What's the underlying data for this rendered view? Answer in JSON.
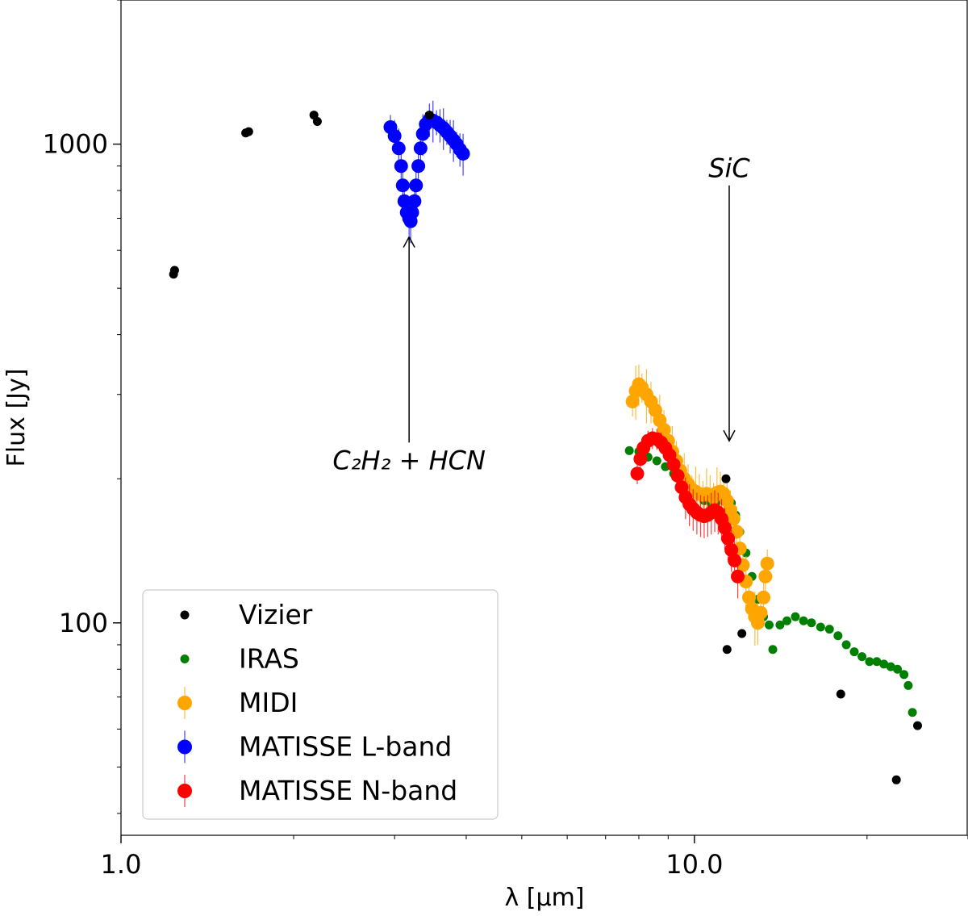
{
  "chart_data": {
    "type": "scatter",
    "xscale": "log",
    "yscale": "log",
    "xlabel": "λ [µm]",
    "ylabel": "Flux [Jy]",
    "xlim": [
      1.0,
      30.0
    ],
    "ylim": [
      36,
      2000
    ],
    "xticks": [
      {
        "value": 1.0,
        "label": "1.0"
      },
      {
        "value": 10.0,
        "label": "10.0"
      }
    ],
    "yticks": [
      {
        "value": 100,
        "label": "100"
      },
      {
        "value": 1000,
        "label": "1000"
      }
    ],
    "legend_position": "lower-left",
    "series": [
      {
        "name": "Vizier",
        "color": "#000000",
        "marker_size": "small",
        "errorbars": false,
        "points": [
          [
            1.235,
            535
          ],
          [
            1.24,
            545
          ],
          [
            1.65,
            1055
          ],
          [
            1.67,
            1062
          ],
          [
            2.17,
            1150
          ],
          [
            2.2,
            1115
          ],
          [
            3.45,
            1150
          ],
          [
            11.35,
            200
          ],
          [
            11.4,
            88
          ],
          [
            12.1,
            95
          ],
          [
            18.0,
            71
          ],
          [
            22.5,
            47
          ],
          [
            24.5,
            61
          ]
        ]
      },
      {
        "name": "IRAS",
        "color": "#008000",
        "marker_size": "small",
        "errorbars": false,
        "points": [
          [
            7.7,
            229
          ],
          [
            8.0,
            228
          ],
          [
            8.3,
            222
          ],
          [
            8.6,
            218
          ],
          [
            8.9,
            212
          ],
          [
            9.2,
            205
          ],
          [
            9.5,
            196
          ],
          [
            9.8,
            190
          ],
          [
            10.1,
            185
          ],
          [
            10.4,
            180
          ],
          [
            10.7,
            178
          ],
          [
            11.0,
            180
          ],
          [
            11.3,
            183
          ],
          [
            11.6,
            178
          ],
          [
            11.8,
            168
          ],
          [
            12.0,
            155
          ],
          [
            12.3,
            140
          ],
          [
            12.6,
            125
          ],
          [
            12.9,
            112
          ],
          [
            13.2,
            103
          ],
          [
            13.5,
            99
          ],
          [
            13.7,
            88
          ],
          [
            14.1,
            99
          ],
          [
            14.5,
            101
          ],
          [
            15.0,
            103
          ],
          [
            15.5,
            101
          ],
          [
            16.0,
            100
          ],
          [
            16.6,
            98
          ],
          [
            17.2,
            97
          ],
          [
            17.8,
            94
          ],
          [
            18.4,
            90
          ],
          [
            19.0,
            87
          ],
          [
            19.6,
            85
          ],
          [
            20.2,
            83
          ],
          [
            20.8,
            83
          ],
          [
            21.4,
            82
          ],
          [
            22.0,
            81
          ],
          [
            22.6,
            80
          ],
          [
            23.2,
            78
          ],
          [
            23.6,
            74
          ],
          [
            24.0,
            65
          ]
        ]
      },
      {
        "name": "MIDI",
        "color": "#FFA500",
        "marker_size": "large",
        "errorbars": true,
        "points": [
          [
            7.8,
            290
          ],
          [
            7.9,
            305
          ],
          [
            8.0,
            315
          ],
          [
            8.1,
            310
          ],
          [
            8.25,
            300
          ],
          [
            8.4,
            290
          ],
          [
            8.55,
            278
          ],
          [
            8.7,
            265
          ],
          [
            8.85,
            253
          ],
          [
            9.0,
            240
          ],
          [
            9.15,
            228
          ],
          [
            9.3,
            218
          ],
          [
            9.45,
            208
          ],
          [
            9.6,
            200
          ],
          [
            9.75,
            195
          ],
          [
            9.9,
            190
          ],
          [
            10.05,
            188
          ],
          [
            10.2,
            186
          ],
          [
            10.35,
            185
          ],
          [
            10.5,
            186
          ],
          [
            10.65,
            185
          ],
          [
            10.8,
            183
          ],
          [
            10.95,
            187
          ],
          [
            11.1,
            188
          ],
          [
            11.25,
            186
          ],
          [
            11.4,
            180
          ],
          [
            11.55,
            172
          ],
          [
            11.7,
            165
          ],
          [
            11.85,
            155
          ],
          [
            12.0,
            143
          ],
          [
            12.15,
            132
          ],
          [
            12.3,
            122
          ],
          [
            12.45,
            113
          ],
          [
            12.6,
            107
          ],
          [
            12.75,
            103
          ],
          [
            12.9,
            100
          ],
          [
            13.05,
            105
          ],
          [
            13.2,
            113
          ],
          [
            13.3,
            125
          ],
          [
            13.4,
            133
          ]
        ]
      },
      {
        "name": "MATISSE L-band",
        "color": "#0000FF",
        "marker_size": "large",
        "errorbars": true,
        "points": [
          [
            2.95,
            1085
          ],
          [
            3.0,
            1040
          ],
          [
            3.05,
            980
          ],
          [
            3.08,
            900
          ],
          [
            3.1,
            820
          ],
          [
            3.12,
            760
          ],
          [
            3.15,
            720
          ],
          [
            3.18,
            700
          ],
          [
            3.2,
            690
          ],
          [
            3.22,
            720
          ],
          [
            3.25,
            760
          ],
          [
            3.27,
            820
          ],
          [
            3.3,
            900
          ],
          [
            3.33,
            980
          ],
          [
            3.36,
            1050
          ],
          [
            3.4,
            1100
          ],
          [
            3.45,
            1125
          ],
          [
            3.5,
            1120
          ],
          [
            3.55,
            1110
          ],
          [
            3.6,
            1095
          ],
          [
            3.65,
            1080
          ],
          [
            3.7,
            1060
          ],
          [
            3.75,
            1040
          ],
          [
            3.8,
            1020
          ],
          [
            3.85,
            1000
          ],
          [
            3.9,
            975
          ],
          [
            3.95,
            955
          ]
        ]
      },
      {
        "name": "MATISSE N-band",
        "color": "#FF0000",
        "marker_size": "large",
        "errorbars": true,
        "points": [
          [
            7.95,
            205
          ],
          [
            8.05,
            220
          ],
          [
            8.15,
            232
          ],
          [
            8.3,
            240
          ],
          [
            8.45,
            243
          ],
          [
            8.6,
            242
          ],
          [
            8.75,
            238
          ],
          [
            8.9,
            232
          ],
          [
            9.05,
            224
          ],
          [
            9.2,
            214
          ],
          [
            9.35,
            203
          ],
          [
            9.5,
            192
          ],
          [
            9.65,
            183
          ],
          [
            9.8,
            177
          ],
          [
            9.95,
            173
          ],
          [
            10.1,
            170
          ],
          [
            10.25,
            168
          ],
          [
            10.4,
            167
          ],
          [
            10.55,
            168
          ],
          [
            10.7,
            170
          ],
          [
            10.85,
            172
          ],
          [
            11.0,
            170
          ],
          [
            11.15,
            165
          ],
          [
            11.3,
            158
          ],
          [
            11.45,
            150
          ],
          [
            11.6,
            142
          ],
          [
            11.75,
            135
          ],
          [
            11.9,
            125
          ]
        ]
      }
    ],
    "annotations": [
      {
        "text": "SiC",
        "arrow_tail": [
          11.5,
          820
        ],
        "arrow_head": [
          11.5,
          240
        ],
        "label_anchor": "above-tail"
      },
      {
        "text": "C₂H₂ + HCN",
        "arrow_tail": [
          3.18,
          238
        ],
        "arrow_head": [
          3.18,
          640
        ],
        "label_anchor": "below-tail"
      }
    ]
  }
}
